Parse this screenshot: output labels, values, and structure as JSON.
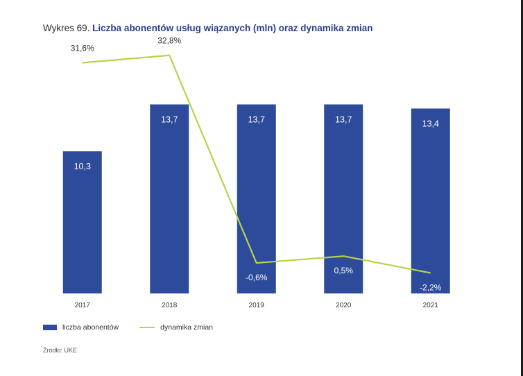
{
  "title": {
    "prefix": "Wykres 69.",
    "main": "Liczba abonentów usług wiązanych (mln) oraz dynamika zmian"
  },
  "colors": {
    "bar": "#2d4b9a",
    "line": "#b8d44a",
    "title_accent": "#2d3f8f"
  },
  "legend": {
    "bar_label": "liczba abonentów",
    "line_label": "dynamika zmian"
  },
  "source": "Źródło: UKE",
  "chart_data": {
    "type": "bar",
    "categories": [
      "2017",
      "2018",
      "2019",
      "2020",
      "2021"
    ],
    "series": [
      {
        "name": "liczba abonentów",
        "type": "bar",
        "values": [
          10.3,
          13.7,
          13.7,
          13.7,
          13.4
        ],
        "labels": [
          "10,3",
          "13,7",
          "13,7",
          "13,7",
          "13,4"
        ]
      },
      {
        "name": "dynamika zmian",
        "type": "line",
        "values": [
          31.6,
          32.8,
          -0.6,
          0.5,
          -2.2
        ],
        "labels": [
          "31,6%",
          "32,8%",
          "-0,6%",
          "0,5%",
          "-2,2%"
        ]
      }
    ],
    "bar_ylim": [
      0,
      18.25
    ],
    "line_ylim": [
      -5.5,
      35
    ],
    "grid": false,
    "legend_position": "bottom-left"
  }
}
